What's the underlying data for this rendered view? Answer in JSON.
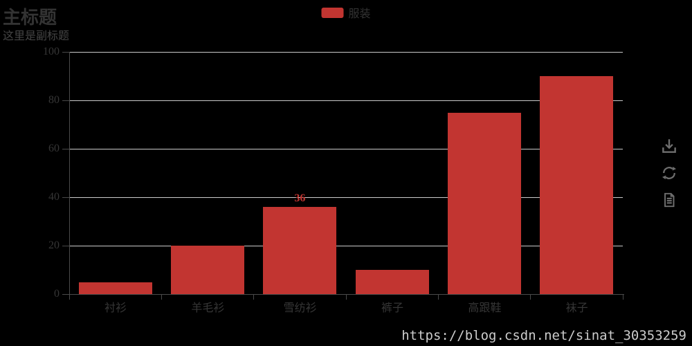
{
  "title": {
    "text": "主标题",
    "subtext": "这里是副标题"
  },
  "legend": {
    "items": [
      {
        "label": "服装",
        "color": "#c23531",
        "selected": true
      }
    ]
  },
  "toolbox": {
    "icons": [
      {
        "name": "save-as-image-icon",
        "meaning": "download chart as image"
      },
      {
        "name": "restore-icon",
        "meaning": "restore / refresh chart"
      },
      {
        "name": "data-view-icon",
        "meaning": "view data table"
      }
    ]
  },
  "watermark": "https://blog.csdn.net/sinat_30353259",
  "colors": {
    "background": "#000000",
    "bar": "#c23531",
    "grid_line": "#cccccc",
    "axis_line": "#4a4a4a",
    "axis_label": "#363636",
    "title_text": "#333333",
    "subtitle_text": "#454545",
    "legend_text": "#333333",
    "toolbox_icon": "#6e6e6e",
    "watermark_text": "#cccccc",
    "value_label": "#c23531"
  },
  "chart_data": {
    "type": "bar",
    "title": "主标题",
    "subtitle": "这里是副标题",
    "categories": [
      "衬衫",
      "羊毛衫",
      "雪纺衫",
      "裤子",
      "高跟鞋",
      "袜子"
    ],
    "series": [
      {
        "name": "服装",
        "values": [
          5,
          20,
          36,
          10,
          75,
          90
        ]
      }
    ],
    "value_labels": [
      null,
      null,
      "36",
      null,
      null,
      null
    ],
    "xlabel": "",
    "ylabel": "",
    "ylim": [
      0,
      100
    ],
    "yticks": [
      0,
      20,
      40,
      60,
      80,
      100
    ],
    "grid": true,
    "legend_position": "top-center",
    "background": "dark"
  }
}
